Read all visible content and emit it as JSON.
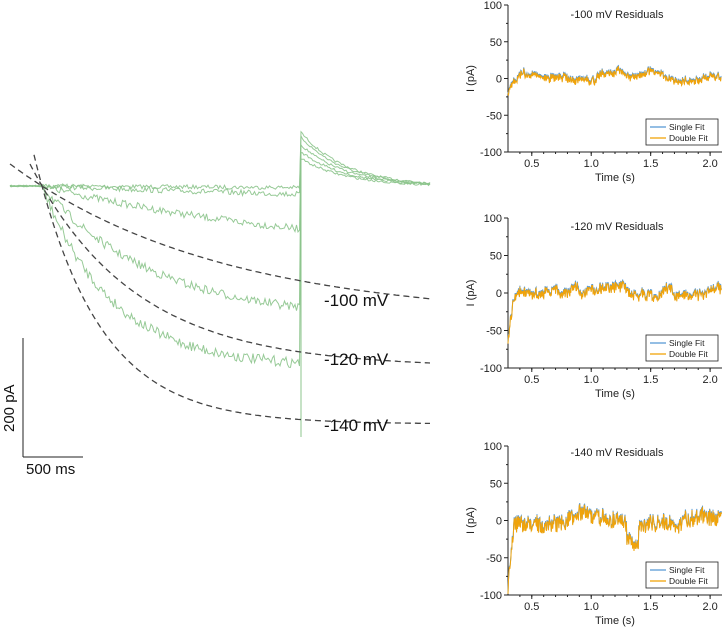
{
  "colors": {
    "trace": "#8cc48c",
    "fit": "#444444",
    "single_fit": "#5b9bd5",
    "double_fit": "#f0a30a"
  },
  "chart_data": [
    {
      "type": "line",
      "traces": [
        {
          "name": "",
          "steady_pA": -10
        },
        {
          "name": "",
          "steady_pA": -45
        },
        {
          "name": "",
          "steady_pA": -125
        },
        {
          "name": "",
          "steady_pA": -225
        },
        {
          "name": "",
          "steady_pA": -305
        }
      ],
      "fits": [
        {
          "label": "-100 mV",
          "steady_pA": -225
        },
        {
          "label": "-120 mV",
          "steady_pA": -305
        },
        {
          "label": "-140 mV",
          "steady_pA": -400
        }
      ],
      "scale_bar": {
        "y_value": 200,
        "y_label": "200 pA",
        "x_value": 500,
        "x_label": "500 ms"
      }
    },
    {
      "type": "line",
      "title": "-100 mV Residuals",
      "xlabel": "Time (s)",
      "ylabel": "I (pA)",
      "xlim": [
        0.3,
        2.1
      ],
      "ylim": [
        -100,
        100
      ],
      "xticks": [
        "0.5",
        "1.0",
        "1.5",
        "2.0"
      ],
      "yticks": [
        "100",
        "50",
        "0",
        "-50",
        "-100"
      ],
      "series": [
        {
          "name": "Single Fit"
        },
        {
          "name": "Double Fit"
        }
      ],
      "legend": "bottom-right"
    },
    {
      "type": "line",
      "title": "-120 mV Residuals",
      "xlabel": "Time (s)",
      "ylabel": "I (pA)",
      "xlim": [
        0.3,
        2.1
      ],
      "ylim": [
        -100,
        100
      ],
      "xticks": [
        "0.5",
        "1.0",
        "1.5",
        "2.0"
      ],
      "yticks": [
        "100",
        "50",
        "0",
        "-50",
        "-100"
      ],
      "series": [
        {
          "name": "Single Fit"
        },
        {
          "name": "Double Fit"
        }
      ],
      "legend": "bottom-right"
    },
    {
      "type": "line",
      "title": "-140 mV Residuals",
      "xlabel": "Time (s)",
      "ylabel": "I (pA)",
      "xlim": [
        0.3,
        2.1
      ],
      "ylim": [
        -100,
        100
      ],
      "xticks": [
        "0.5",
        "1.0",
        "1.5",
        "2.0"
      ],
      "yticks": [
        "100",
        "50",
        "0",
        "-50",
        "-100"
      ],
      "series": [
        {
          "name": "Single Fit"
        },
        {
          "name": "Double Fit"
        }
      ],
      "legend": "bottom-right"
    }
  ]
}
